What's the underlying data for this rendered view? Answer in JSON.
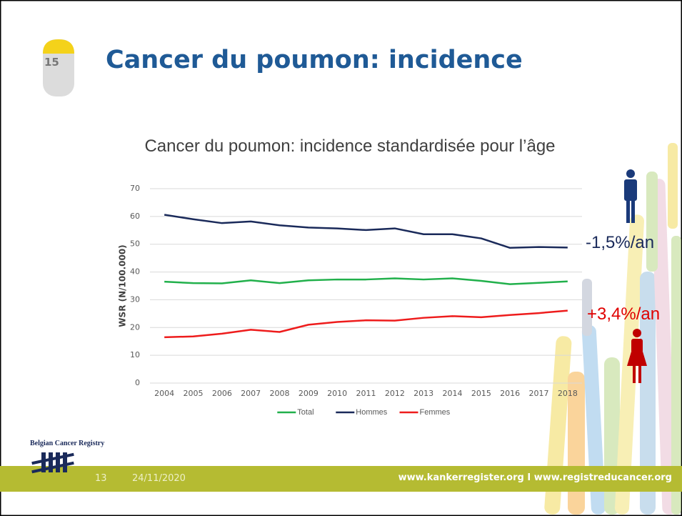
{
  "slide": {
    "milestone": "15",
    "title": "Cancer du poumon: incidence",
    "brand": "Belgian Cancer Registry",
    "number": "13",
    "date": "24/11/2020",
    "url": "www.kankerregister.org I www.registreducancer.org"
  },
  "chart_data": {
    "type": "line",
    "title": "Cancer du poumon: incidence standardisée pour l’âge",
    "y_label": "WSR (N/100.000)",
    "categories": [
      "2004",
      "2005",
      "2006",
      "2007",
      "2008",
      "2009",
      "2010",
      "2011",
      "2012",
      "2013",
      "2014",
      "2015",
      "2016",
      "2017",
      "2018"
    ],
    "series": [
      {
        "name": "Total",
        "color": "#21b04b",
        "values": [
          36.5,
          36.0,
          35.9,
          37.0,
          36.0,
          37.0,
          37.3,
          37.3,
          37.7,
          37.3,
          37.7,
          36.8,
          35.6,
          36.1,
          36.6
        ]
      },
      {
        "name": "Hommes",
        "color": "#1a2a5a",
        "values": [
          60.6,
          59.0,
          57.6,
          58.2,
          56.8,
          56.0,
          55.7,
          55.1,
          55.7,
          53.6,
          53.6,
          52.1,
          48.7,
          49.0,
          48.8
        ]
      },
      {
        "name": "Femmes",
        "color": "#ee1c1c",
        "values": [
          16.5,
          16.8,
          17.8,
          19.2,
          18.4,
          21.0,
          22.0,
          22.6,
          22.5,
          23.5,
          24.1,
          23.7,
          24.5,
          25.2,
          26.1
        ]
      }
    ],
    "ylim": [
      0,
      70
    ],
    "yticks": [
      0,
      10,
      20,
      30,
      40,
      50,
      60,
      70
    ],
    "grid": true,
    "legend": "bottom",
    "annotations": [
      "-1,5%/an",
      "+3,4%/an"
    ]
  }
}
